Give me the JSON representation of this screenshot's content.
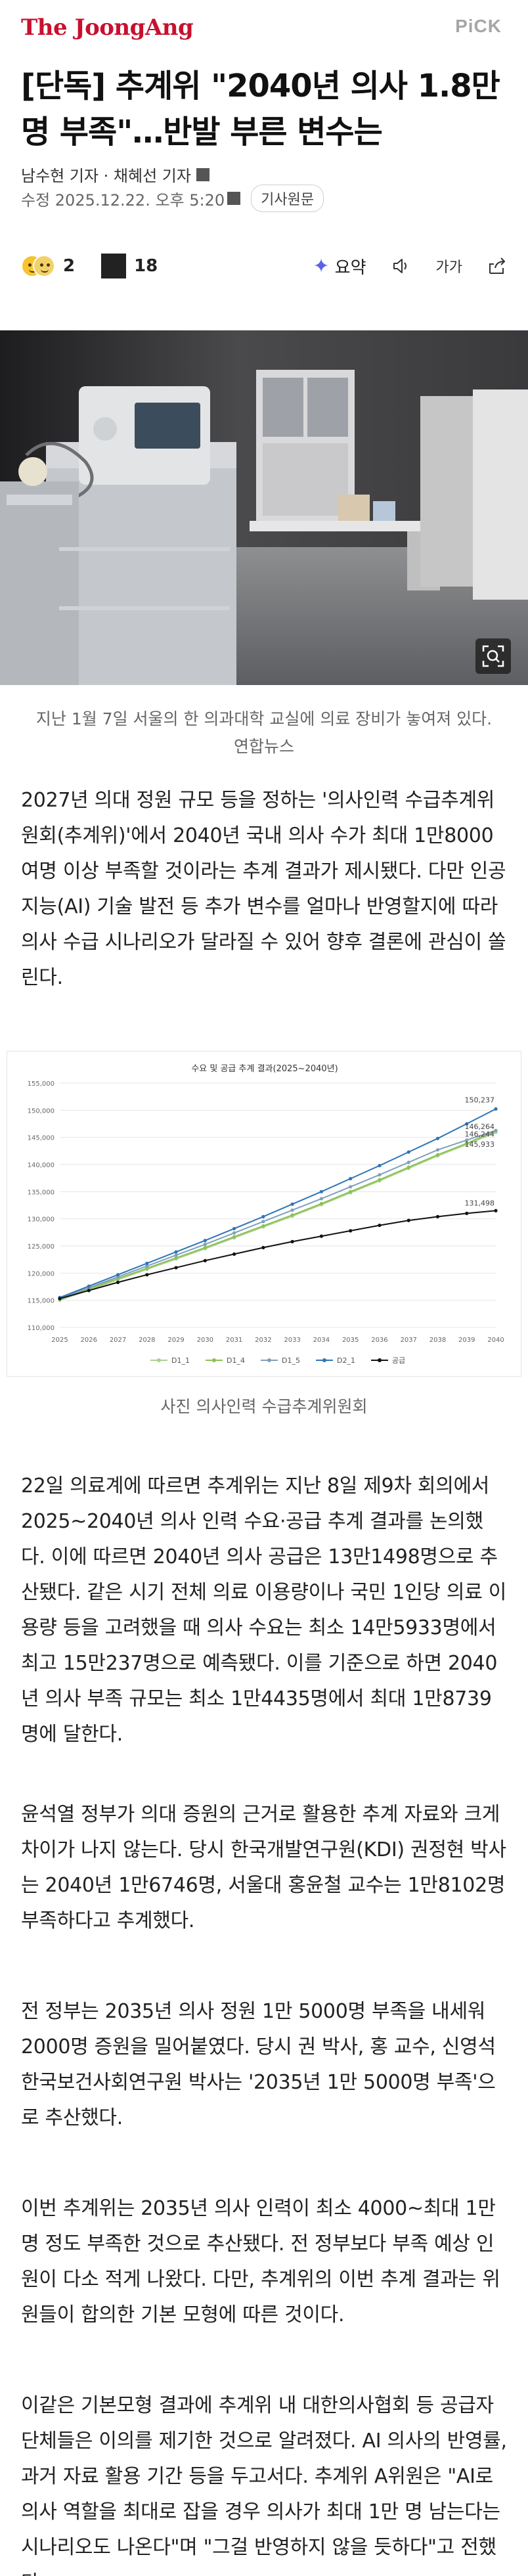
{
  "header": {
    "logo": "The JoongAng",
    "pick": "PiCK"
  },
  "article": {
    "headline": "[단독] 추계위 \"2040년 의사 1.8만명 부족\"…반발 부른 변수는",
    "reporters": "남수현 기자 · 채혜선 기자",
    "date": "수정 2025.12.22. 오후 5:20",
    "original_button": "기사원문"
  },
  "actions": {
    "reaction_count": "2",
    "comment_count": "18",
    "summary_label": "요약",
    "icons": [
      "emoji-reaction-icon",
      "comment-icon",
      "sparkle-icon",
      "audio-icon",
      "font-size-icon",
      "share-icon"
    ],
    "font_label": "가가"
  },
  "photo": {
    "caption": "지난 1월 7일 서울의 한 의과대학 교실에 의료 장비가 놓여져 있다. 연합뉴스"
  },
  "paragraphs": {
    "p1": "2027년 의대 정원 규모 등을 정하는 '의사인력 수급추계위원회(추계위)'에서 2040년 국내 의사 수가 최대 1만8000여명 이상 부족할 것이라는 추계 결과가 제시됐다. 다만 인공지능(AI) 기술 발전 등 추가 변수를 얼마나 반영할지에 따라 의사 수급 시나리오가 달라질 수 있어 향후 결론에 관심이 쏠린다.",
    "p2": "22일 의료계에 따르면 추계위는 지난 8일 제9차 회의에서 2025~2040년 의사 인력 수요·공급 추계 결과를 논의했다. 이에 따르면 2040년 의사 공급은 13만1498명으로 추산됐다. 같은 시기 전체 의료 이용량이나 국민 1인당 의료 이용량 등을 고려했을 때 의사 수요는 최소 14만5933명에서 최고 15만237명으로 예측됐다. 이를 기준으로 하면 2040년 의사 부족 규모는 최소 1만4435명에서 최대 1만8739명에 달한다.",
    "p3": "윤석열 정부가 의대 증원의 근거로 활용한 추계 자료와 크게 차이가 나지 않는다. 당시 한국개발연구원(KDI) 권정현 박사는 2040년 1만6746명, 서울대 홍윤철 교수는 1만8102명 부족하다고 추계했다.",
    "p4": "전 정부는 2035년 의사 정원 1만 5000명 부족을 내세워 2000명 증원을 밀어붙였다. 당시 권 박사, 홍 교수, 신영석 한국보건사회연구원 박사는 '2035년 1만 5000명 부족'으로 추산했다.",
    "p5": "이번 추계위는 2035년 의사 인력이 최소 4000~최대 1만명 정도 부족한 것으로 추산됐다. 전 정부보다 부족 예상 인원이 다소 적게 나왔다. 다만, 추계위의 이번 추계 결과는 위원들이 합의한 기본 모형에 따른 것이다.",
    "p6": "이같은 기본모형 결과에 추계위 내 대한의사협회 등 공급자 단체들은 이의를 제기한 것으로 알려졌다. AI 의사의 반영률, 과거 자료 활용 기간 등을 두고서다. 추계위 A위원은 \"AI로 의사 역할을 최대로 잡을 경우 의사가 최대 1만 명 남는다는 시나리오도 나온다\"며 \"그걸 반영하지 않을 듯하다\"고 전했다."
  },
  "chart_caption": "사진 의사인력 수급추계위원회",
  "chart_data": {
    "type": "line",
    "title": "수요 및 공급 추계 결과(2025~2040년)",
    "x": [
      "2025",
      "2026",
      "2027",
      "2028",
      "2029",
      "2030",
      "2031",
      "2032",
      "2033",
      "2034",
      "2035",
      "2036",
      "2037",
      "2038",
      "2039",
      "2040"
    ],
    "ylim": [
      110000,
      155000
    ],
    "yticks": [
      "110,000",
      "115,000",
      "120,000",
      "125,000",
      "130,000",
      "135,000",
      "140,000",
      "145,000",
      "150,000",
      "155,000"
    ],
    "series": [
      {
        "name": "D1_1",
        "color": "#a9d18e",
        "values": [
          115000,
          116900,
          118800,
          120700,
          122600,
          124500,
          126500,
          128500,
          130500,
          132600,
          134800,
          137000,
          139300,
          141600,
          143700,
          145933
        ]
      },
      {
        "name": "D1_4",
        "color": "#8cc152",
        "values": [
          115200,
          117100,
          119000,
          120900,
          122800,
          124700,
          126700,
          128700,
          130700,
          132800,
          135000,
          137200,
          139500,
          141800,
          143900,
          146244
        ]
      },
      {
        "name": "D1_5",
        "color": "#7f9fbf",
        "values": [
          115300,
          117300,
          119300,
          121300,
          123300,
          125300,
          127400,
          129500,
          131600,
          133700,
          135900,
          138100,
          140400,
          142700,
          144500,
          146264
        ]
      },
      {
        "name": "D2_1",
        "color": "#2e75b6",
        "values": [
          115500,
          117600,
          119700,
          121800,
          123900,
          126000,
          128200,
          130400,
          132700,
          135000,
          137400,
          139800,
          142300,
          144800,
          147500,
          150237
        ]
      },
      {
        "name": "공급",
        "color": "#111111",
        "values": [
          115300,
          116800,
          118300,
          119700,
          121000,
          122300,
          123500,
          124700,
          125800,
          126800,
          127800,
          128800,
          129700,
          130400,
          131000,
          131498
        ]
      }
    ],
    "labels": [
      {
        "text": "150,237",
        "series": "D2_1"
      },
      {
        "text": "146,264",
        "series": "D1_5"
      },
      {
        "text": "146,244",
        "series": "D1_4"
      },
      {
        "text": "145,933",
        "series": "D1_1"
      },
      {
        "text": "131,498",
        "series": "공급"
      }
    ]
  }
}
